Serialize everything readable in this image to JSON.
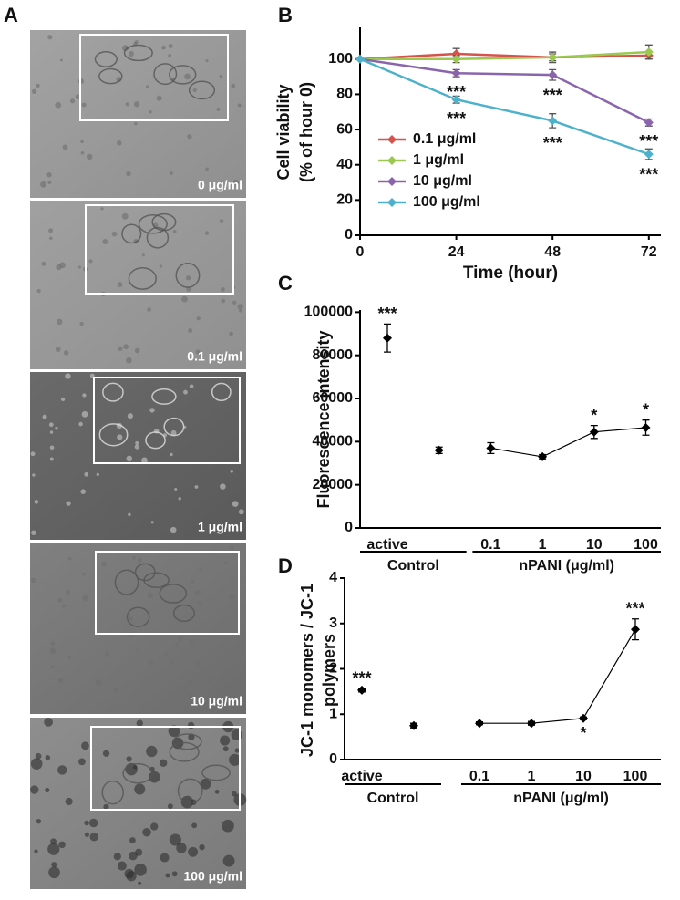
{
  "panel_a": {
    "label": "A",
    "images": [
      "0 μg/ml",
      "0.1 μg/ml",
      "1 μg/ml",
      "10 μg/ml",
      "100 μg/ml"
    ]
  },
  "chart_data": [
    {
      "type": "line",
      "panel_label": "B",
      "xlabel": "Time (hour)",
      "ylabel": [
        "Cell viability",
        "(% of hour 0)"
      ],
      "x": [
        0,
        24,
        48,
        72
      ],
      "xlim": [
        0,
        75
      ],
      "xticks": [
        0,
        24,
        48,
        72
      ],
      "ylim": [
        0,
        118
      ],
      "yticks": [
        0,
        20,
        40,
        60,
        80,
        100
      ],
      "legend": "lower left",
      "series": [
        {
          "name": "0.1 μg/ml",
          "color": "#d4534a",
          "values": [
            100,
            103,
            101,
            102
          ],
          "errors": [
            0,
            3,
            2,
            2
          ],
          "significance": [
            null,
            null,
            null,
            null
          ]
        },
        {
          "name": "1 μg/ml",
          "color": "#9bc94f",
          "values": [
            100,
            100,
            101,
            104
          ],
          "errors": [
            0,
            2,
            3,
            4
          ],
          "significance": [
            null,
            null,
            null,
            null
          ]
        },
        {
          "name": "10 μg/ml",
          "color": "#8a65ac",
          "values": [
            100,
            92,
            91,
            64
          ],
          "errors": [
            0,
            2,
            3,
            2
          ],
          "significance": [
            null,
            {
              "text": "***",
              "position": "below"
            },
            {
              "text": "***",
              "position": "below"
            },
            {
              "text": "***",
              "position": "below"
            }
          ]
        },
        {
          "name": "100 μg/ml",
          "color": "#4cb2cc",
          "values": [
            100,
            77,
            65,
            46
          ],
          "errors": [
            0,
            2,
            4,
            3
          ],
          "significance": [
            null,
            {
              "text": "***",
              "position": "below"
            },
            {
              "text": "***",
              "position": "below"
            },
            {
              "text": "***",
              "position": "below"
            }
          ]
        }
      ]
    },
    {
      "type": "dot",
      "panel_label": "C",
      "ylabel": [
        "Fluorescence intensity"
      ],
      "categories": [
        "active",
        null,
        "0.1",
        "1",
        "10",
        "100"
      ],
      "values": [
        88000,
        36000,
        37000,
        33000,
        44500,
        46500
      ],
      "errors": [
        6500,
        1500,
        2500,
        1000,
        3000,
        3500
      ],
      "significance": [
        {
          "text": "***",
          "position": "above"
        },
        null,
        null,
        null,
        {
          "text": "*",
          "position": "above"
        },
        {
          "text": "*",
          "position": "above"
        }
      ],
      "line_start_index": 2,
      "color": "#000000",
      "groups": [
        {
          "label": "Control",
          "from": 0,
          "to": 1
        },
        {
          "label": "nPANI (μg/ml)",
          "from": 2,
          "to": 5
        }
      ],
      "ylim": [
        0,
        101000
      ],
      "yticks": [
        0,
        20000,
        40000,
        60000,
        80000,
        100000
      ]
    },
    {
      "type": "dot",
      "panel_label": "D",
      "ylabel": [
        "JC-1 monomers / JC-1",
        "polymers"
      ],
      "categories": [
        "active",
        null,
        "0.1",
        "1",
        "10",
        "100"
      ],
      "values": [
        1.53,
        0.75,
        0.8,
        0.8,
        0.91,
        2.87
      ],
      "errors": [
        0.04,
        0.05,
        0.03,
        0.04,
        0.03,
        0.23
      ],
      "significance": [
        {
          "text": "***",
          "position": "above"
        },
        null,
        null,
        null,
        {
          "text": "*",
          "position": "below"
        },
        {
          "text": "***",
          "position": "above"
        }
      ],
      "line_start_index": 2,
      "color": "#000000",
      "groups": [
        {
          "label": "Control",
          "from": 0,
          "to": 1
        },
        {
          "label": "nPANI (μg/ml)",
          "from": 2,
          "to": 5
        }
      ],
      "ylim": [
        0,
        4
      ],
      "yticks": [
        0,
        1,
        2,
        3,
        4
      ]
    }
  ]
}
